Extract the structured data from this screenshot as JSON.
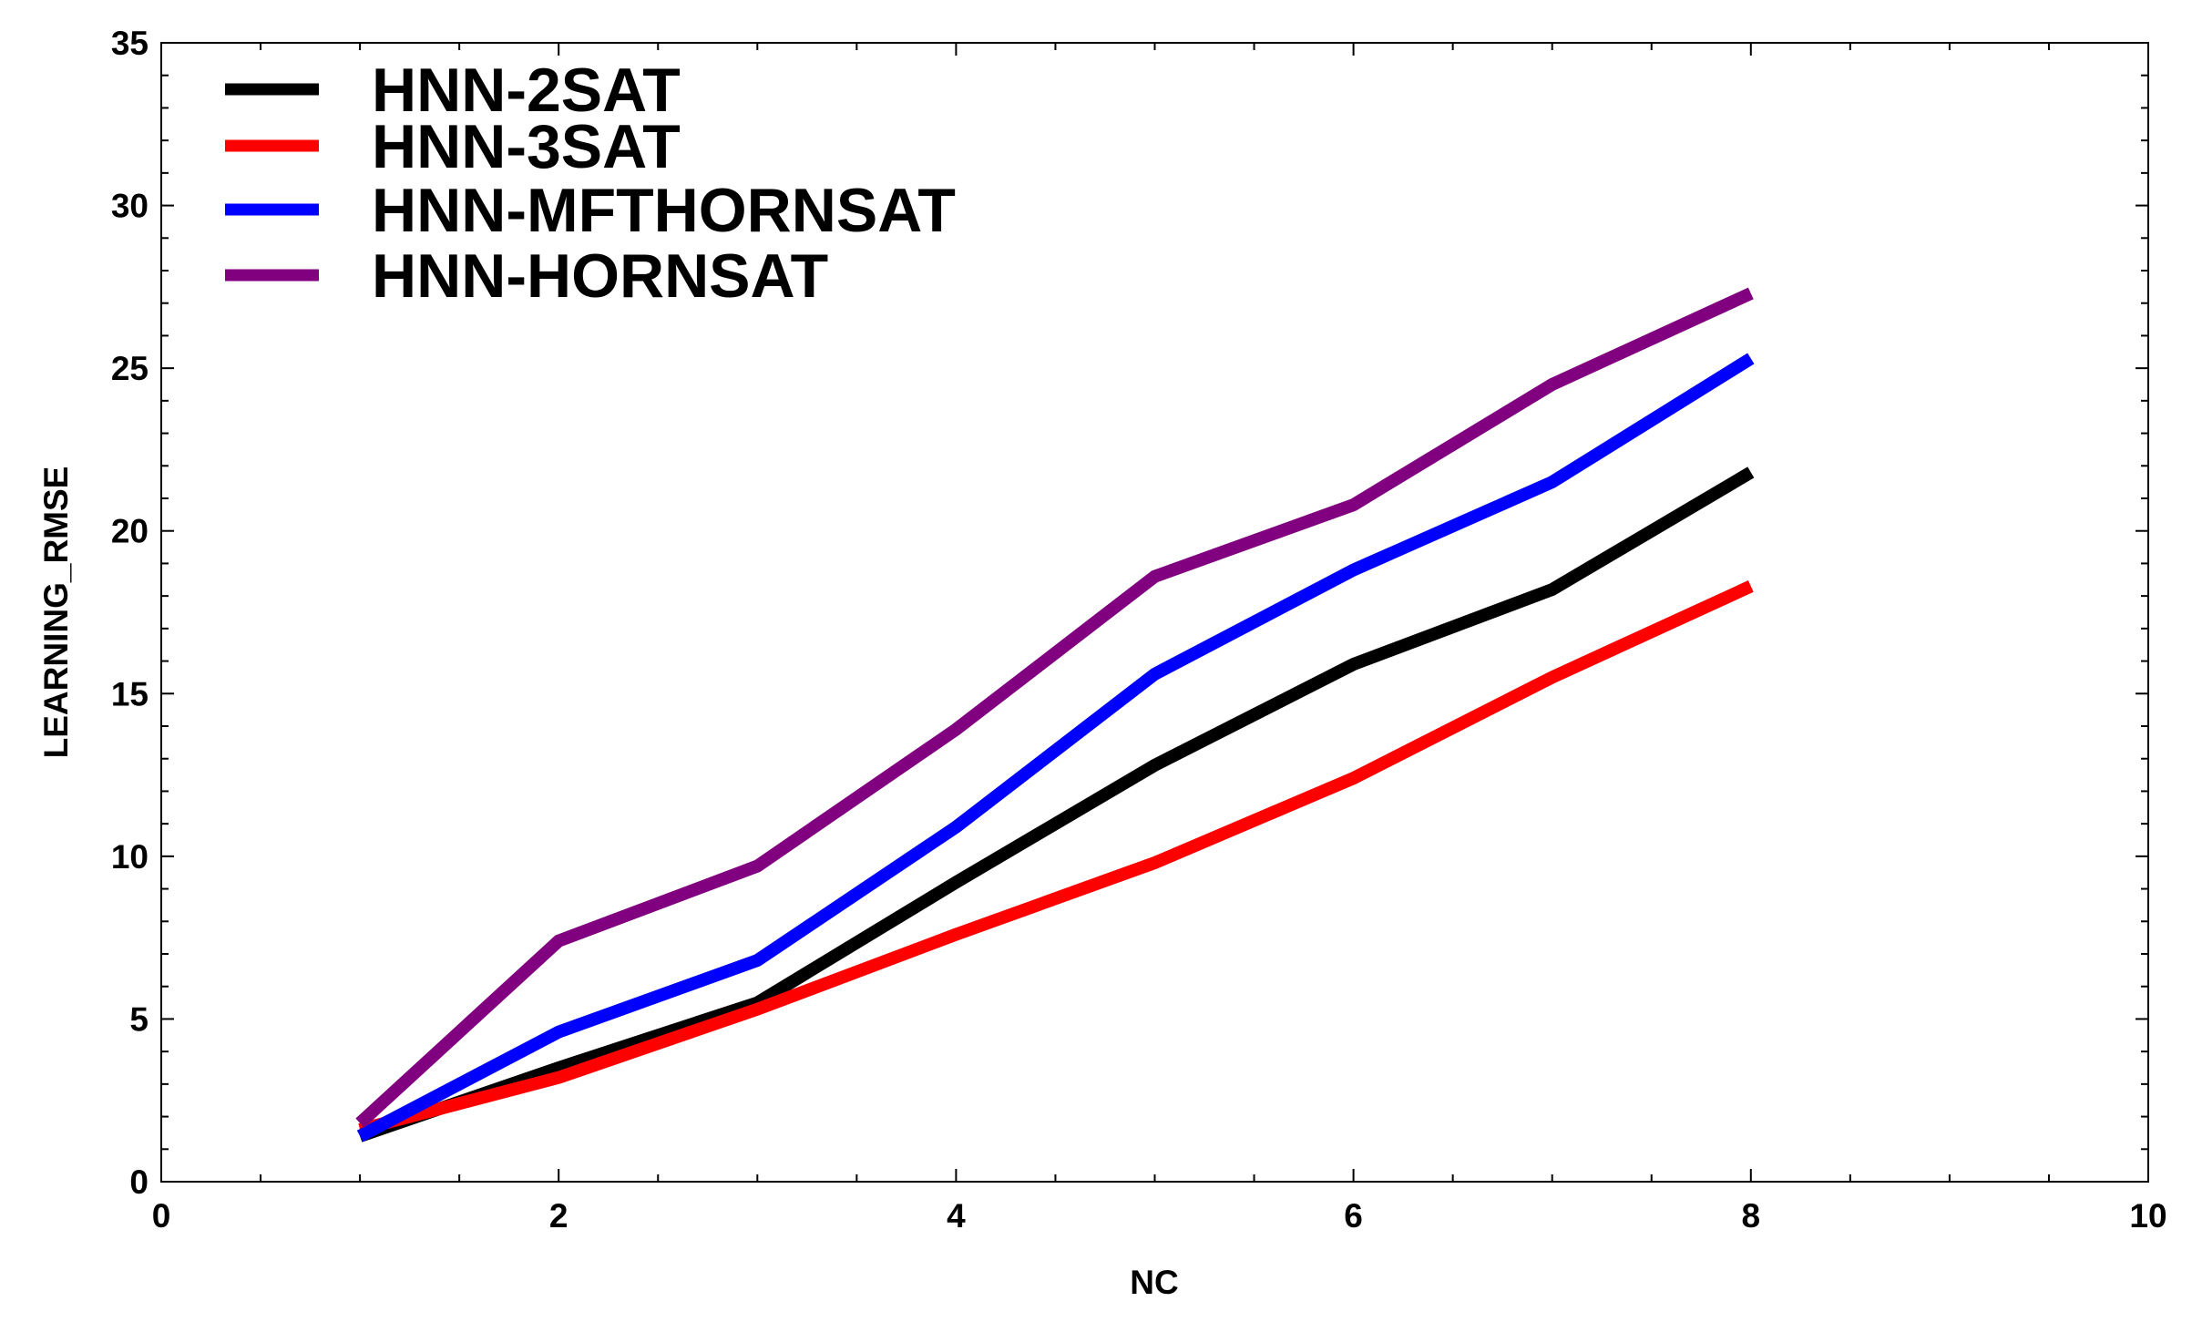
{
  "chart_data": {
    "type": "line",
    "title": "",
    "xlabel": "NC",
    "ylabel": "LEARNING_RMSE",
    "xlim": [
      0,
      10
    ],
    "ylim": [
      0,
      35
    ],
    "xticks": [
      0,
      2,
      4,
      6,
      8,
      10
    ],
    "yticks": [
      0,
      5,
      10,
      15,
      20,
      25,
      30,
      35
    ],
    "grid": false,
    "legend_position": "top-left",
    "x": [
      1,
      2,
      3,
      4,
      5,
      6,
      7,
      8
    ],
    "series": [
      {
        "name": "HNN-2SAT",
        "color": "#000000",
        "values": [
          1.4,
          3.5,
          5.5,
          9.2,
          12.8,
          15.9,
          18.2,
          21.8
        ]
      },
      {
        "name": "HNN-3SAT",
        "color": "#ff0000",
        "values": [
          1.6,
          3.2,
          5.3,
          7.6,
          9.8,
          12.4,
          15.5,
          18.3
        ]
      },
      {
        "name": "HNN-MFTHORNSAT",
        "color": "#0000ff",
        "values": [
          1.4,
          4.6,
          6.8,
          10.9,
          15.6,
          18.8,
          21.5,
          25.3
        ]
      },
      {
        "name": "HNN-HORNSAT",
        "color": "#800080",
        "values": [
          1.8,
          7.4,
          9.7,
          13.9,
          18.6,
          20.8,
          24.5,
          27.3
        ]
      }
    ]
  }
}
